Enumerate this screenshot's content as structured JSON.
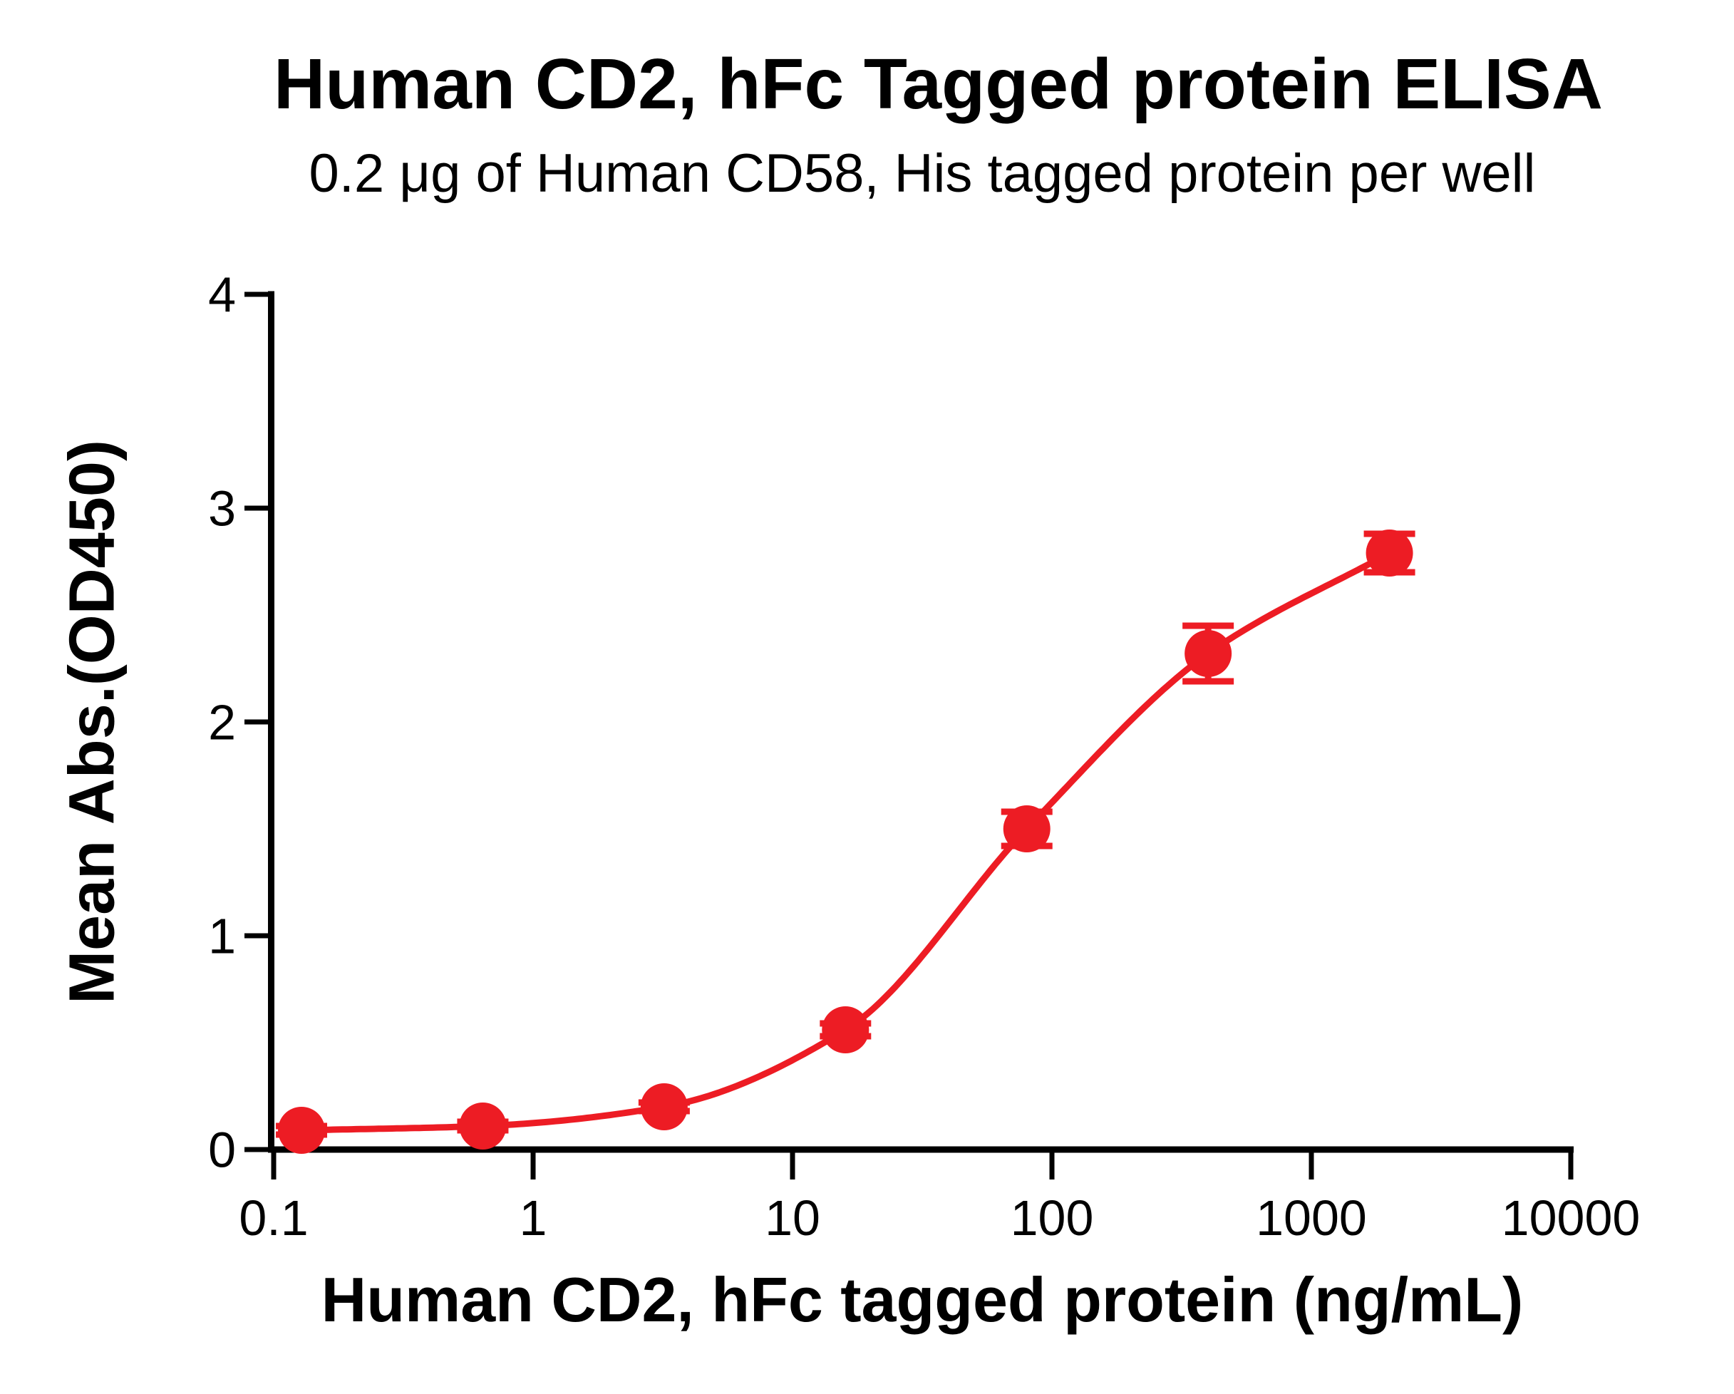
{
  "figure": {
    "background": "#ffffff",
    "text_color": "#000000"
  },
  "chart_data": {
    "type": "scatter",
    "title": "Human CD2, hFc Tagged protein ELISA",
    "subtitle": "0.2 μg of Human CD58, His tagged protein per well",
    "xlabel": "Human CD2, hFc tagged protein (ng/mL)",
    "ylabel": "Mean Abs.(OD450)",
    "x_scale": "log10",
    "xlim": [
      0.1,
      10000
    ],
    "ylim": [
      0,
      4
    ],
    "grid": false,
    "legend": null,
    "x_ticks": [
      0.1,
      1,
      10,
      100,
      1000,
      10000
    ],
    "x_tick_labels": [
      "0.1",
      "1",
      "10",
      "100",
      "1000",
      "10000"
    ],
    "y_ticks": [
      0,
      1,
      2,
      3,
      4
    ],
    "y_tick_labels": [
      "0",
      "1",
      "2",
      "3",
      "4"
    ],
    "axis_color": "#000000",
    "series": [
      {
        "name": "Human CD2, hFc tagged protein",
        "color": "#ED1C24",
        "marker": "circle",
        "line": "4PL-fit-curve",
        "x": [
          0.128,
          0.64,
          3.2,
          16,
          80,
          400,
          2000
        ],
        "y": [
          0.09,
          0.11,
          0.2,
          0.56,
          1.5,
          2.32,
          2.79
        ],
        "y_err": [
          0.02,
          0.02,
          0.02,
          0.03,
          0.08,
          0.13,
          0.09
        ]
      }
    ]
  }
}
